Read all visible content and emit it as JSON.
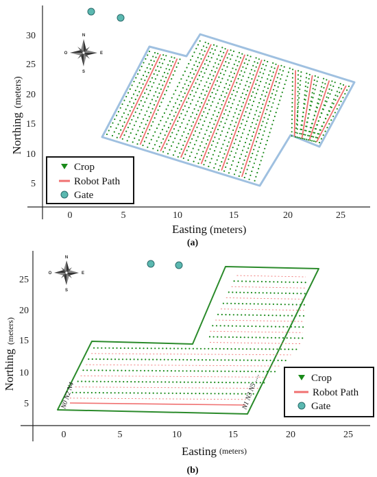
{
  "panel_a": {
    "caption": "(a)",
    "xlabel": "Easting",
    "xunit": "(meters)",
    "ylabel": "Northing",
    "yunit": "(meters)",
    "xticks": [
      "0",
      "5",
      "10",
      "15",
      "20",
      "25"
    ],
    "yticks": [
      "5",
      "10",
      "15",
      "20",
      "25",
      "30"
    ],
    "compass": {
      "n": "N",
      "s": "S",
      "e": "E",
      "w": "O"
    },
    "legend": {
      "crop": "Crop",
      "path": "Robot Path",
      "gate": "Gate"
    }
  },
  "panel_b": {
    "caption": "(b)",
    "xlabel": "Easting",
    "xunit": "(meters)",
    "ylabel": "Northing",
    "yunit": "(meters)",
    "xticks": [
      "0",
      "5",
      "10",
      "15",
      "20",
      "25"
    ],
    "yticks": [
      "5",
      "10",
      "15",
      "20",
      "25"
    ],
    "compass": {
      "n": "N",
      "s": "S",
      "e": "E",
      "w": "O"
    },
    "legend": {
      "crop": "Crop",
      "path": "Robot Path",
      "gate": "Gate"
    },
    "row_labels_left": "N0 N2 N4",
    "row_labels_right": "N1 N3 N5 ....."
  },
  "colors": {
    "crop": "#1a8a1a",
    "path": "#f07070",
    "gate": "#5bb8b0",
    "field_a_border": "#9fc0e0",
    "field_b_border": "#2a8a2a"
  }
}
